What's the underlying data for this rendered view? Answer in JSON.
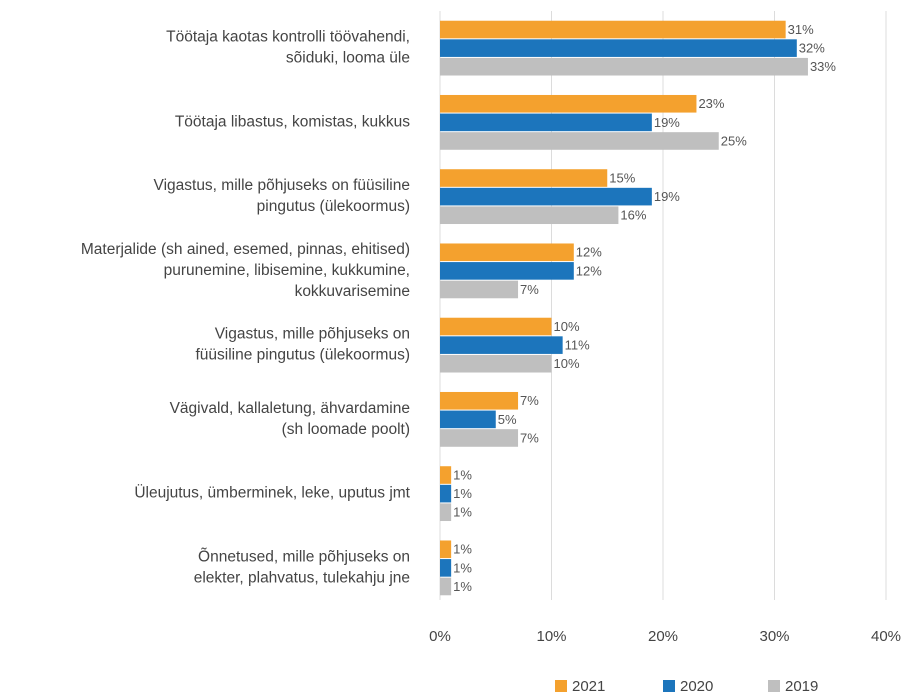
{
  "chart_data": {
    "type": "hbar",
    "categories": [
      [
        "Töötaja kaotas kontrolli töövahendi,",
        "sõiduki, looma üle"
      ],
      [
        "Töötaja libastus, komistas, kukkus"
      ],
      [
        "Vigastus, mille põhjuseks on füüsiline",
        "pingutus (ülekoormus)"
      ],
      [
        "Materjalide (sh ained, esemed, pinnas, ehitised)",
        "purunemine, libisemine, kukkumine,",
        "kokkuvarisemine"
      ],
      [
        "Vigastus, mille põhjuseks on",
        "füüsiline pingutus (ülekoormus)"
      ],
      [
        "Vägivald, kallaletung, ähvardamine",
        "(sh loomade poolt)"
      ],
      [
        "Üleujutus, ümberminek, leke, uputus jmt"
      ],
      [
        "Õnnetused, mille põhjuseks on",
        "elekter, plahvatus, tulekahju jne"
      ]
    ],
    "series": [
      {
        "name": "2021",
        "color": "#f4a12e",
        "values": [
          31,
          23,
          15,
          12,
          10,
          7,
          1,
          1
        ],
        "value_labels": [
          "31%",
          "23%",
          "15%",
          "12%",
          "10%",
          "7%",
          "1%",
          "1%"
        ]
      },
      {
        "name": "2020",
        "color": "#1c75bc",
        "values": [
          32,
          19,
          19,
          12,
          11,
          5,
          1,
          1
        ],
        "value_labels": [
          "32%",
          "19%",
          "19%",
          "12%",
          "11%",
          "5%",
          "1%",
          "1%"
        ]
      },
      {
        "name": "2019",
        "color": "#bfbfbf",
        "values": [
          33,
          25,
          16,
          7,
          10,
          7,
          1,
          1
        ],
        "value_labels": [
          "33%",
          "25%",
          "16%",
          "7%",
          "10%",
          "7%",
          "1%",
          "1%"
        ]
      }
    ],
    "xlim": [
      0,
      40
    ],
    "xticks": [
      {
        "value": 0,
        "label": "0%"
      },
      {
        "value": 10,
        "label": "10%"
      },
      {
        "value": 20,
        "label": "20%"
      },
      {
        "value": 30,
        "label": "30%"
      },
      {
        "value": 40,
        "label": "40%"
      }
    ],
    "grid": true,
    "legend": "bottom"
  }
}
